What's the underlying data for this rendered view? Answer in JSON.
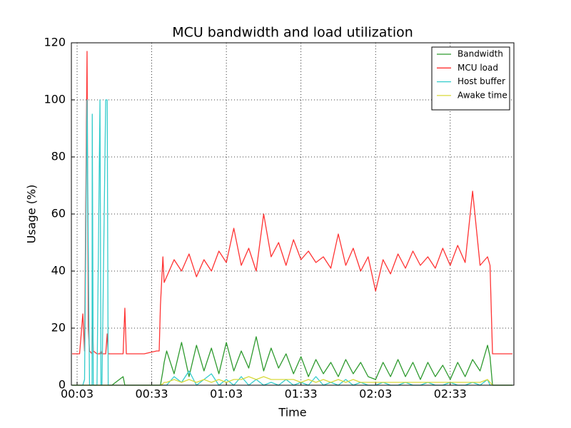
{
  "chart_data": {
    "type": "line",
    "title": "MCU bandwidth and load utilization",
    "xlabel": "Time",
    "ylabel": "Usage (%)",
    "xlim": [
      0.7,
      178.6
    ],
    "ylim": [
      0,
      120
    ],
    "xticks": [
      {
        "value": 3,
        "label": "00:03"
      },
      {
        "value": 33,
        "label": "00:33"
      },
      {
        "value": 63,
        "label": "01:03"
      },
      {
        "value": 93,
        "label": "01:33"
      },
      {
        "value": 123,
        "label": "02:03"
      },
      {
        "value": 153,
        "label": "02:33"
      }
    ],
    "yticks": [
      0,
      20,
      40,
      60,
      80,
      100,
      120
    ],
    "grid": true,
    "legend": "upper right",
    "x": [
      1,
      4,
      5.3,
      6,
      7,
      7.5,
      8,
      9,
      9.1,
      9.5,
      11,
      12.2,
      12.6,
      13,
      14.5,
      15.1,
      15.5,
      17,
      21.5,
      22.2,
      22.8,
      30,
      35,
      36,
      36.5,
      37.5,
      38,
      39,
      42,
      45,
      48,
      51,
      54,
      57,
      60,
      63,
      66,
      69,
      72,
      75,
      78,
      81,
      84,
      87,
      90,
      93,
      96,
      99,
      102,
      105,
      108,
      111,
      114,
      117,
      120,
      123,
      126,
      129,
      132,
      135,
      138,
      141,
      144,
      147,
      150,
      153,
      156,
      159,
      162,
      165,
      168,
      169,
      170,
      172,
      178
    ],
    "series": [
      {
        "name": "Bandwidth",
        "color": "#2e9a2e",
        "values": [
          0,
          0,
          0,
          0,
          0,
          0,
          0,
          0,
          0,
          0,
          0,
          0,
          0,
          0,
          0,
          0,
          0,
          0,
          3,
          0,
          0,
          0,
          0,
          0,
          0,
          5,
          8,
          12,
          4,
          15,
          3,
          14,
          5,
          13,
          4,
          15,
          5,
          12,
          6,
          17,
          5,
          13,
          6,
          11,
          4,
          10,
          3,
          9,
          4,
          8,
          3,
          9,
          4,
          8,
          3,
          2,
          8,
          3,
          9,
          3,
          8,
          2,
          8,
          3,
          7,
          2,
          8,
          3,
          9,
          5,
          14,
          10,
          0,
          0,
          0
        ]
      },
      {
        "name": "MCU load",
        "color": "#ff3333",
        "values": [
          11,
          11,
          25,
          12,
          117,
          20,
          12,
          11,
          28,
          12,
          11,
          11,
          12,
          11,
          11,
          18,
          11,
          11,
          11,
          27,
          11,
          11,
          12,
          12,
          28,
          45,
          36,
          38,
          44,
          40,
          46,
          38,
          44,
          40,
          47,
          43,
          55,
          42,
          48,
          40,
          60,
          45,
          50,
          42,
          51,
          44,
          47,
          43,
          45,
          41,
          53,
          42,
          48,
          40,
          45,
          33,
          44,
          39,
          46,
          41,
          47,
          42,
          45,
          41,
          48,
          42,
          49,
          43,
          68,
          42,
          45,
          42,
          11,
          11,
          11
        ]
      },
      {
        "name": "Host buffer",
        "color": "#33cccc",
        "values": [
          0,
          0,
          0,
          2,
          100,
          48,
          0,
          0,
          95,
          0,
          0,
          100,
          0,
          0,
          100,
          100,
          0,
          0,
          0,
          0,
          0,
          0,
          0,
          0,
          0,
          0,
          0,
          0,
          3,
          1,
          5,
          0,
          2,
          4,
          0,
          2,
          0,
          3,
          0,
          2,
          0,
          1,
          0,
          2,
          0,
          1,
          0,
          3,
          0,
          1,
          0,
          2,
          0,
          1,
          0,
          0,
          1,
          0,
          0,
          1,
          0,
          0,
          1,
          0,
          0,
          1,
          0,
          0,
          1,
          0,
          2,
          0,
          0,
          0,
          0
        ]
      },
      {
        "name": "Awake time",
        "color": "#d9d93a",
        "values": [
          0,
          0,
          0,
          0,
          0,
          0,
          0,
          0,
          0,
          0,
          0,
          0,
          0,
          0,
          0,
          0,
          0,
          0,
          0,
          0,
          0,
          0,
          0,
          0,
          0,
          0.5,
          1,
          1,
          2,
          1,
          2,
          1,
          2,
          1,
          2,
          1,
          2,
          2,
          3,
          2,
          3,
          2,
          2,
          2,
          2,
          1,
          2,
          1,
          2,
          1,
          2,
          1,
          2,
          1,
          1,
          1,
          1,
          1,
          1,
          1,
          1,
          1,
          1,
          1,
          1,
          1,
          1,
          1,
          1,
          1,
          2,
          1,
          0,
          0,
          0
        ]
      }
    ]
  }
}
